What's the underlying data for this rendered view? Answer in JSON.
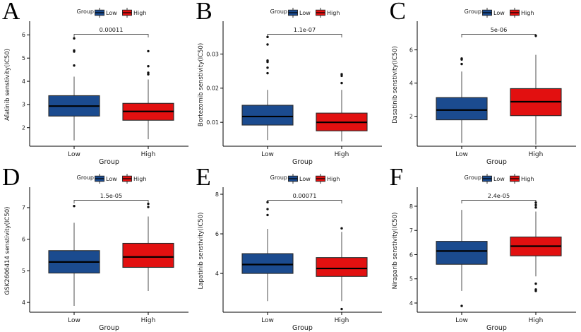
{
  "figure": {
    "background": "#ffffff",
    "legend": {
      "title": "Group",
      "items": [
        {
          "label": "Low",
          "group": "low",
          "color": "#1b4b8f"
        },
        {
          "label": "High",
          "group": "high",
          "color": "#e21010"
        }
      ]
    },
    "colors": {
      "low": "#1b4b8f",
      "high": "#e21010",
      "box_border": "#2b2b2b",
      "median": "#000000",
      "whisker": "#3a3a3a",
      "axis": "#000000",
      "text": "#1a1a1a",
      "bracket": "#4d4d4d",
      "outlier": "#111111"
    }
  },
  "chart_data": [
    {
      "panel_label": "A",
      "type": "boxplot",
      "drug": "Afatinib",
      "p_value": "0.00011",
      "ylabel": "Afatinib senstivity(IC50)",
      "xlabel": "Group",
      "categories": [
        "Low",
        "High"
      ],
      "ylim": [
        1.2,
        6.5
      ],
      "yticks": [
        2,
        3,
        4,
        5,
        6
      ],
      "ytick_labels": [
        "2",
        "3",
        "4",
        "5",
        "6"
      ],
      "grid": false,
      "legend_position": "top",
      "series": [
        {
          "name": "Low",
          "group": "low",
          "whisker_low": 1.45,
          "q1": 2.5,
          "median": 2.93,
          "q3": 3.38,
          "whisker_high": 4.2,
          "outliers": [
            4.68,
            5.28,
            5.33,
            5.85
          ]
        },
        {
          "name": "High",
          "group": "high",
          "whisker_low": 1.5,
          "q1": 2.32,
          "median": 2.7,
          "q3": 3.05,
          "whisker_high": 4.08,
          "outliers": [
            4.3,
            4.37,
            4.65,
            5.3
          ]
        }
      ]
    },
    {
      "panel_label": "B",
      "type": "boxplot",
      "drug": "Bortezomib",
      "p_value": "1.1e-07",
      "ylabel": "Bortezomib senstivity(IC50)",
      "xlabel": "Group",
      "categories": [
        "Low",
        "High"
      ],
      "ylim": [
        0.003,
        0.039
      ],
      "yticks": [
        0.01,
        0.02,
        0.03
      ],
      "ytick_labels": [
        "0.01",
        "0.02",
        "0.03"
      ],
      "grid": false,
      "legend_position": "top",
      "series": [
        {
          "name": "Low",
          "group": "low",
          "whisker_low": 0.0048,
          "q1": 0.0092,
          "median": 0.0117,
          "q3": 0.015,
          "whisker_high": 0.0195,
          "outliers": [
            0.0244,
            0.026,
            0.0277,
            0.0281,
            0.0328,
            0.035
          ]
        },
        {
          "name": "High",
          "group": "high",
          "whisker_low": 0.0044,
          "q1": 0.0075,
          "median": 0.01,
          "q3": 0.0127,
          "whisker_high": 0.0195,
          "outliers": [
            0.0215,
            0.0236,
            0.0241
          ]
        }
      ]
    },
    {
      "panel_label": "C",
      "type": "boxplot",
      "drug": "Dasatinib",
      "p_value": "5e-06",
      "ylabel": "Dasatinib senstivity(IC50)",
      "xlabel": "Group",
      "categories": [
        "Low",
        "High"
      ],
      "ylim": [
        0.2,
        7.6
      ],
      "yticks": [
        2,
        4,
        6
      ],
      "ytick_labels": [
        "2",
        "4",
        "6"
      ],
      "grid": false,
      "legend_position": "top",
      "series": [
        {
          "name": "Low",
          "group": "low",
          "whisker_low": 0.4,
          "q1": 1.79,
          "median": 2.38,
          "q3": 3.13,
          "whisker_high": 4.7,
          "outliers": [
            5.15,
            5.42,
            5.48
          ]
        },
        {
          "name": "High",
          "group": "high",
          "whisker_low": 0.3,
          "q1": 2.04,
          "median": 2.88,
          "q3": 3.67,
          "whisker_high": 5.7,
          "outliers": [
            6.85
          ]
        }
      ]
    },
    {
      "panel_label": "D",
      "type": "boxplot",
      "drug": "GSK2606414",
      "p_value": "1.5e-05",
      "ylabel": "GSK2606414 senstivity(IC50)",
      "xlabel": "Group",
      "categories": [
        "Low",
        "High"
      ],
      "ylim": [
        3.69,
        7.58
      ],
      "yticks": [
        4,
        5,
        6,
        7
      ],
      "ytick_labels": [
        "4",
        "5",
        "6",
        "7"
      ],
      "grid": false,
      "legend_position": "top",
      "series": [
        {
          "name": "Low",
          "group": "low",
          "whisker_low": 3.89,
          "q1": 4.93,
          "median": 5.28,
          "q3": 5.64,
          "whisker_high": 6.52,
          "outliers": [
            7.05
          ]
        },
        {
          "name": "High",
          "group": "high",
          "whisker_low": 4.36,
          "q1": 5.11,
          "median": 5.44,
          "q3": 5.87,
          "whisker_high": 6.72,
          "outliers": [
            7.02,
            7.12
          ]
        }
      ]
    },
    {
      "panel_label": "E",
      "type": "boxplot",
      "drug": "Lapatinib",
      "p_value": "0.00071",
      "ylabel": "Lapatinib senstivity(IC50)",
      "xlabel": "Group",
      "categories": [
        "Low",
        "High"
      ],
      "ylim": [
        2.04,
        8.25
      ],
      "yticks": [
        4,
        6,
        8
      ],
      "ytick_labels": [
        "4",
        "6",
        "8"
      ],
      "grid": false,
      "legend_position": "top",
      "series": [
        {
          "name": "Low",
          "group": "low",
          "whisker_low": 2.6,
          "q1": 4.0,
          "median": 4.45,
          "q3": 5.0,
          "whisker_high": 6.25,
          "outliers": [
            6.95,
            7.25,
            7.6
          ]
        },
        {
          "name": "High",
          "group": "high",
          "whisker_low": 2.6,
          "q1": 3.85,
          "median": 4.25,
          "q3": 4.8,
          "whisker_high": 6.1,
          "outliers": [
            2.2,
            6.28
          ]
        }
      ]
    },
    {
      "panel_label": "F",
      "type": "boxplot",
      "drug": "Niraparib",
      "p_value": "2.4e-05",
      "ylabel": "Niraparib senstivity(IC50)",
      "xlabel": "Group",
      "categories": [
        "Low",
        "High"
      ],
      "ylim": [
        3.62,
        8.7
      ],
      "yticks": [
        4,
        5,
        6,
        7,
        8
      ],
      "ytick_labels": [
        "4",
        "5",
        "6",
        "7",
        "8"
      ],
      "grid": false,
      "legend_position": "top",
      "series": [
        {
          "name": "Low",
          "group": "low",
          "whisker_low": 4.5,
          "q1": 5.6,
          "median": 6.15,
          "q3": 6.55,
          "whisker_high": 7.85,
          "outliers": [
            3.88
          ]
        },
        {
          "name": "High",
          "group": "high",
          "whisker_low": 5.1,
          "q1": 5.95,
          "median": 6.35,
          "q3": 6.73,
          "whisker_high": 7.78,
          "outliers": [
            4.5,
            4.56,
            4.8,
            7.95,
            8.05,
            8.15
          ]
        }
      ]
    }
  ]
}
